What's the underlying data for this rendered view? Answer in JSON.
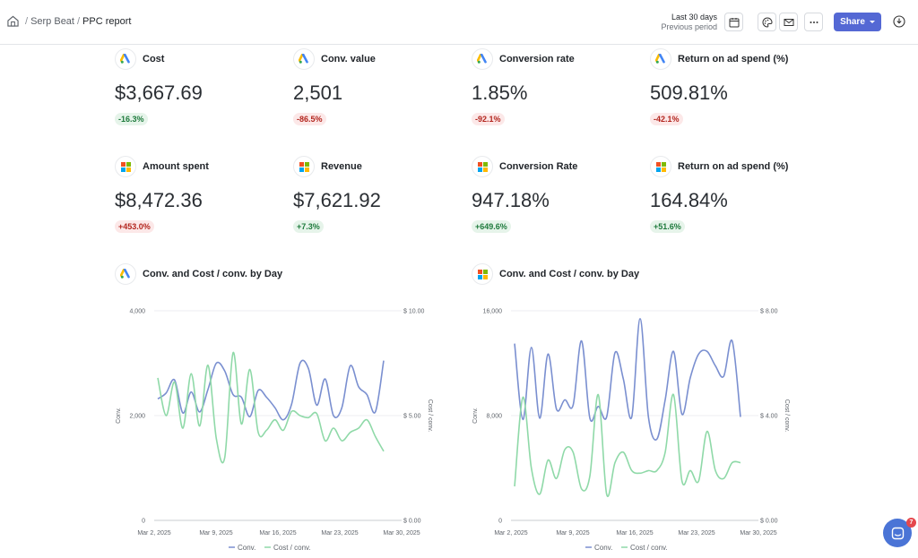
{
  "breadcrumb": {
    "workspace": "Serp Beat",
    "report": "PPC report",
    "separator": "/"
  },
  "period": {
    "current": "Last 30 days",
    "compare": "Previous period"
  },
  "toolbar": {
    "share_label": "Share"
  },
  "chat": {
    "unread": "7"
  },
  "colors": {
    "accent": "#5468d4",
    "conv": "#7a8fd0",
    "cost": "#8fd9a8"
  },
  "google_ads_metrics": [
    {
      "title": "Cost",
      "value": "$3,667.69",
      "change": "-16.3%",
      "trend": "pos"
    },
    {
      "title": "Conv. value",
      "value": "2,501",
      "change": "-86.5%",
      "trend": "neg"
    },
    {
      "title": "Conversion rate",
      "value": "1.85%",
      "change": "-92.1%",
      "trend": "neg"
    },
    {
      "title": "Return on ad spend (%)",
      "value": "509.81%",
      "change": "-42.1%",
      "trend": "neg"
    }
  ],
  "microsoft_ads_metrics": [
    {
      "title": "Amount spent",
      "value": "$8,472.36",
      "change": "+453.0%",
      "trend": "neg"
    },
    {
      "title": "Revenue",
      "value": "$7,621.92",
      "change": "+7.3%",
      "trend": "pos"
    },
    {
      "title": "Conversion Rate",
      "value": "947.18%",
      "change": "+649.6%",
      "trend": "pos"
    },
    {
      "title": "Return on ad spend (%)",
      "value": "164.84%",
      "change": "+51.6%",
      "trend": "pos"
    }
  ],
  "chart_data": [
    {
      "type": "line",
      "title": "Conv. and Cost / conv. by Day",
      "source": "google-ads",
      "xlabel": "",
      "ylabel": "Conv.",
      "y2label": "Cost / conv.",
      "ylim": [
        0,
        4000
      ],
      "y2lim": [
        0,
        10
      ],
      "yticks": [
        "0",
        "2,000",
        "4,000"
      ],
      "y2ticks": [
        "$ 0.00",
        "$ 5.00",
        "$ 10.00"
      ],
      "xticks": [
        "Mar 2, 2025",
        "Mar 9, 2025",
        "Mar 16, 2025",
        "Mar 23, 2025",
        "Mar 30, 2025"
      ],
      "legend": [
        "Conv.",
        "Cost / conv."
      ],
      "series": [
        {
          "name": "Conv.",
          "axis": "left",
          "values": [
            2320,
            2430,
            2680,
            2050,
            2450,
            2070,
            2500,
            3000,
            2850,
            2400,
            2350,
            1980,
            2480,
            2350,
            2150,
            1920,
            2220,
            3000,
            2900,
            2200,
            2700,
            2000,
            2150,
            2950,
            2550,
            2400,
            2070,
            3050
          ]
        },
        {
          "name": "Cost / conv.",
          "axis": "right",
          "values": [
            6.8,
            5.0,
            6.6,
            4.4,
            7.0,
            4.5,
            7.4,
            3.9,
            3.0,
            8.0,
            4.6,
            7.2,
            4.2,
            4.3,
            4.8,
            4.3,
            5.2,
            5.0,
            4.9,
            5.1,
            3.8,
            4.4,
            3.8,
            4.2,
            4.4,
            4.8,
            4.0,
            3.3
          ]
        }
      ]
    },
    {
      "type": "line",
      "title": "Conv. and Cost / conv. by Day",
      "source": "microsoft-ads",
      "xlabel": "",
      "ylabel": "Conv.",
      "y2label": "Cost / conv.",
      "ylim": [
        0,
        16000
      ],
      "y2lim": [
        0,
        8
      ],
      "yticks": [
        "0",
        "8,000",
        "16,000"
      ],
      "y2ticks": [
        "$ 0.00",
        "$ 4.00",
        "$ 8.00"
      ],
      "xticks": [
        "Mar 2, 2025",
        "Mar 9, 2025",
        "Mar 16, 2025",
        "Mar 23, 2025",
        "Mar 30, 2025"
      ],
      "legend": [
        "Conv.",
        "Cost / conv."
      ],
      "series": [
        {
          "name": "Conv.",
          "axis": "left",
          "values": [
            13500,
            7700,
            13200,
            7800,
            12700,
            8500,
            9200,
            8800,
            13700,
            7800,
            8700,
            7900,
            12800,
            10800,
            7900,
            15400,
            7900,
            6200,
            9200,
            12900,
            8100,
            10900,
            12700,
            12900,
            11800,
            11000,
            13700,
            7900
          ]
        },
        {
          "name": "Cost / conv.",
          "axis": "right",
          "values": [
            1.3,
            4.7,
            2.0,
            1.0,
            2.3,
            1.6,
            2.7,
            2.6,
            1.2,
            1.7,
            4.8,
            1.0,
            2.2,
            2.6,
            1.9,
            1.8,
            1.9,
            1.9,
            2.6,
            4.8,
            1.5,
            1.9,
            1.5,
            3.4,
            1.9,
            1.6,
            2.2,
            2.2
          ]
        }
      ]
    }
  ]
}
